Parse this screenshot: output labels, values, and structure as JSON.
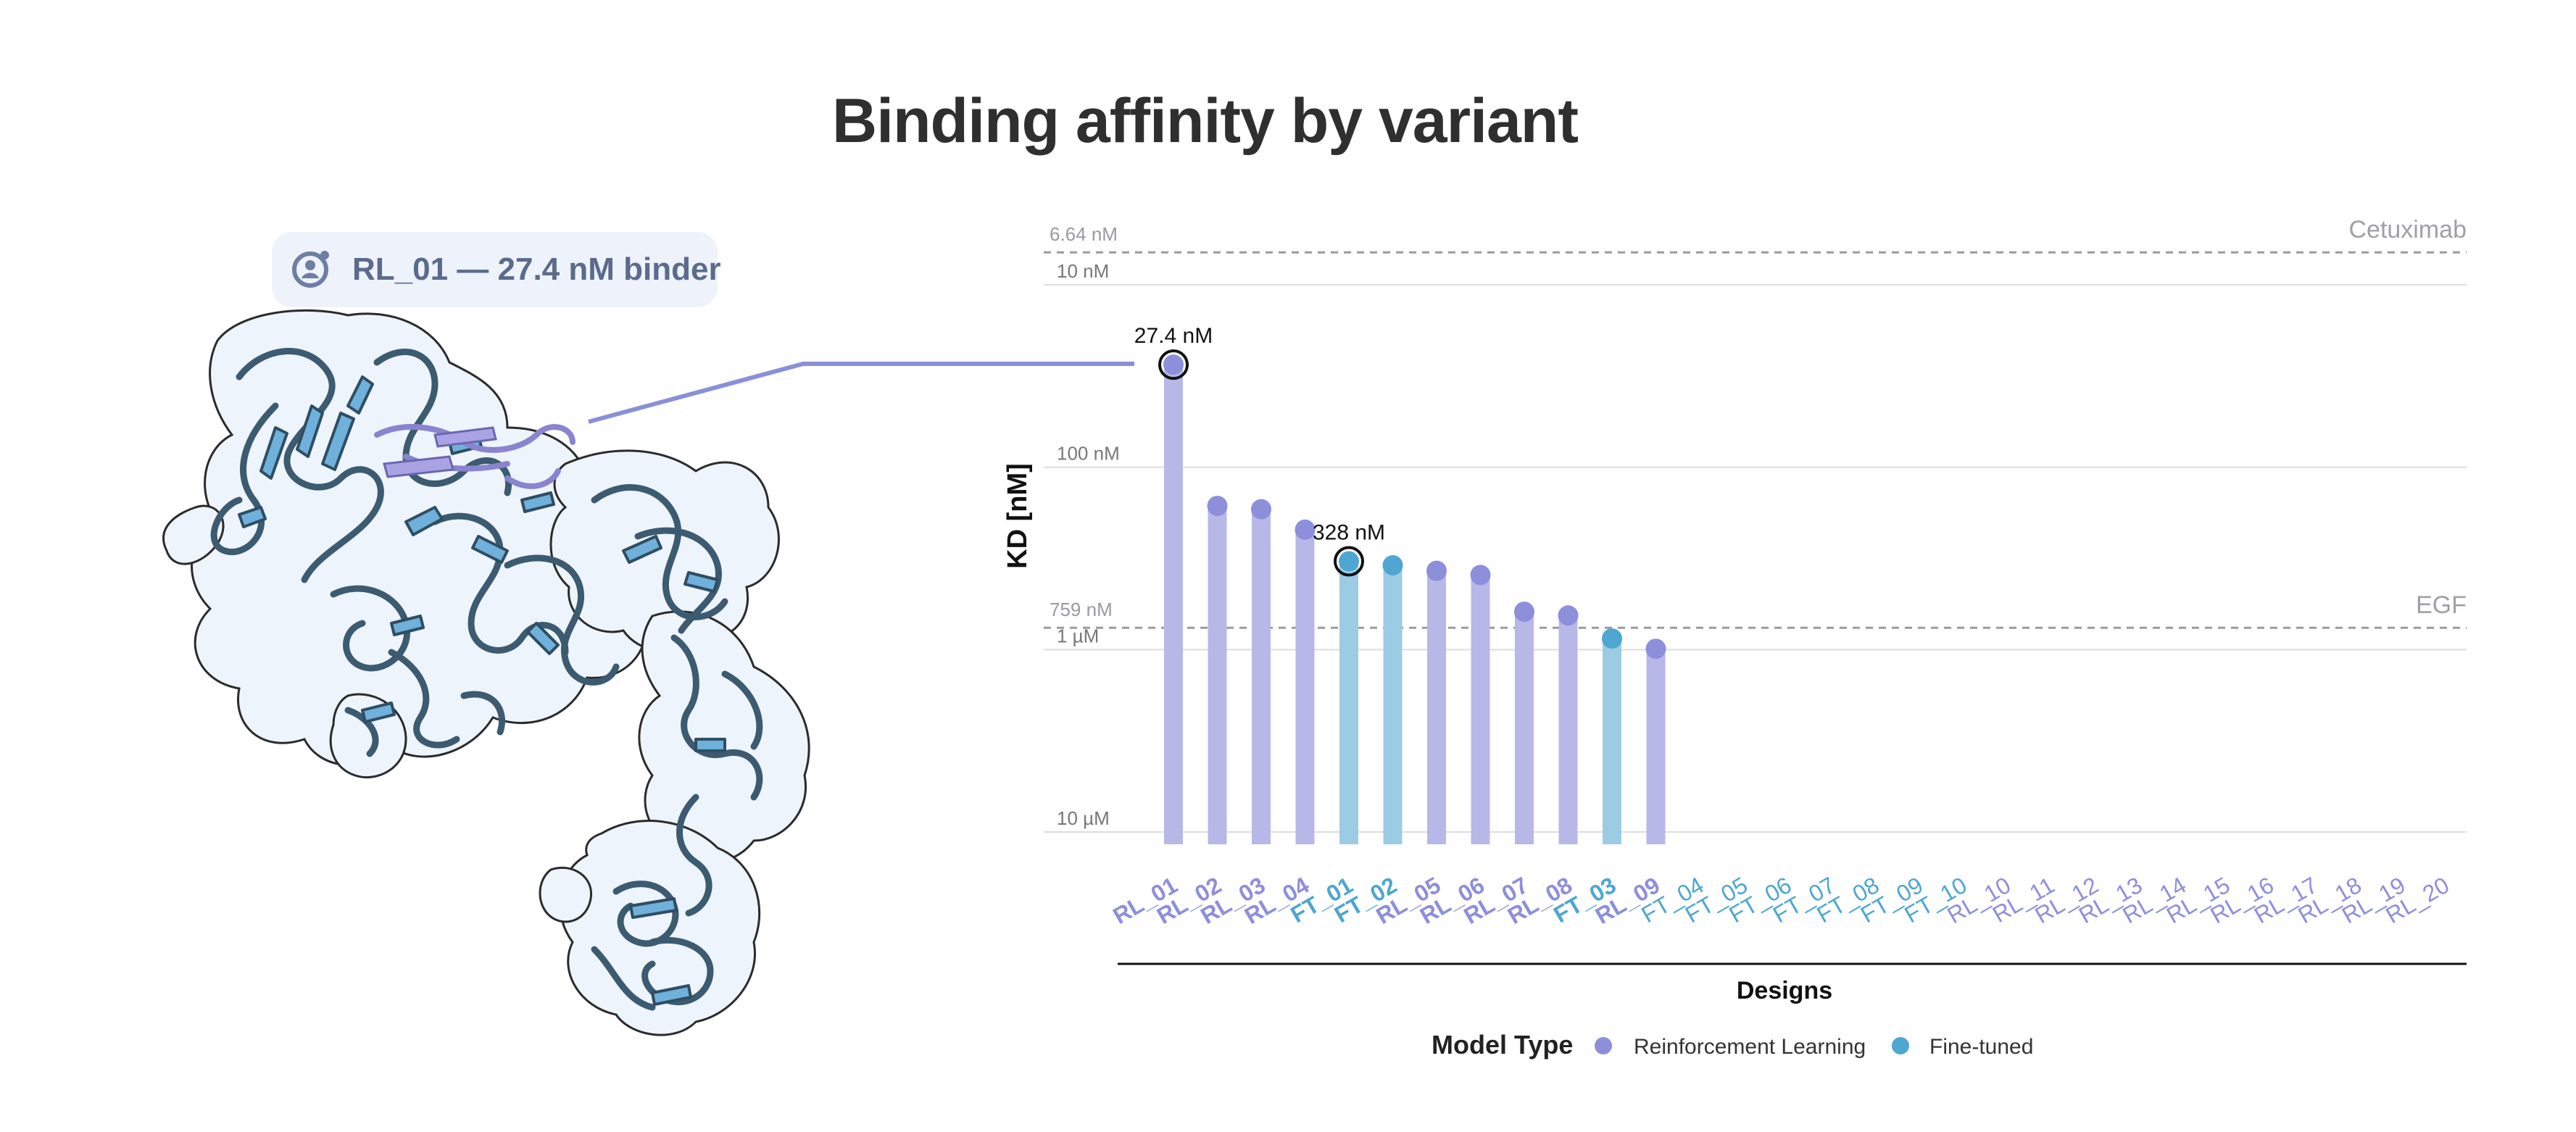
{
  "title": "Binding affinity by variant",
  "callout": {
    "label": "RL_01 — 27.4 nM binder",
    "icon": "protein-user-icon"
  },
  "structure": {
    "icon": "protein-structure-illustration"
  },
  "colors": {
    "rl": "#8d8fdb",
    "rl_bar": "#b7b8e8",
    "ft": "#4ea6d1",
    "ft_bar": "#9ccbe4",
    "protein_fill": "#6fb1da",
    "protein_stroke": "#3c5b70",
    "surface": "#eef4fb",
    "highlight": "#a9a3e3"
  },
  "chart_data": {
    "type": "bar",
    "title": "Binding affinity by variant",
    "xlabel": "Designs",
    "ylabel": "KD [nM]",
    "yscale": "log",
    "ylim_nM": [
      10000,
      6.64
    ],
    "y_ticks": [
      {
        "value": 10,
        "label": "10 nM"
      },
      {
        "value": 100,
        "label": "100 nM"
      },
      {
        "value": 1000,
        "label": "1 µM"
      },
      {
        "value": 10000,
        "label": "10 µM"
      }
    ],
    "reference_lines": [
      {
        "name": "Cetuximab",
        "value": 6.64,
        "value_label": "6.64 nM"
      },
      {
        "name": "EGF",
        "value": 759,
        "value_label": "759 nM"
      }
    ],
    "categories": [
      "RL_01",
      "RL_02",
      "RL_03",
      "RL_04",
      "FT_01",
      "FT_02",
      "RL_05",
      "RL_06",
      "RL_07",
      "RL_08",
      "FT_03",
      "RL_09",
      "FT_04",
      "FT_05",
      "FT_06",
      "FT_07",
      "FT_08",
      "FT_09",
      "FT_10",
      "RL_10",
      "RL_11",
      "RL_12",
      "RL_13",
      "RL_14",
      "RL_15",
      "RL_16",
      "RL_17",
      "RL_18",
      "RL_19",
      "RL_20"
    ],
    "model_type": [
      "RL",
      "RL",
      "RL",
      "RL",
      "FT",
      "FT",
      "RL",
      "RL",
      "RL",
      "RL",
      "FT",
      "RL",
      "FT",
      "FT",
      "FT",
      "FT",
      "FT",
      "FT",
      "FT",
      "RL",
      "RL",
      "RL",
      "RL",
      "RL",
      "RL",
      "RL",
      "RL",
      "RL",
      "RL",
      "RL"
    ],
    "values_nM": [
      27.4,
      163,
      170,
      220,
      328,
      345,
      370,
      390,
      620,
      650,
      870,
      990,
      null,
      null,
      null,
      null,
      null,
      null,
      null,
      null,
      null,
      null,
      null,
      null,
      null,
      null,
      null,
      null,
      null,
      null
    ],
    "annotations": [
      {
        "category": "RL_01",
        "text": "27.4 nM"
      },
      {
        "category": "FT_01",
        "text": "328 nM"
      }
    ],
    "legend": {
      "title": "Model Type",
      "placement": "bottom",
      "entries": [
        {
          "key": "RL",
          "label": "Reinforcement Learning"
        },
        {
          "key": "FT",
          "label": "Fine-tuned"
        }
      ]
    }
  }
}
